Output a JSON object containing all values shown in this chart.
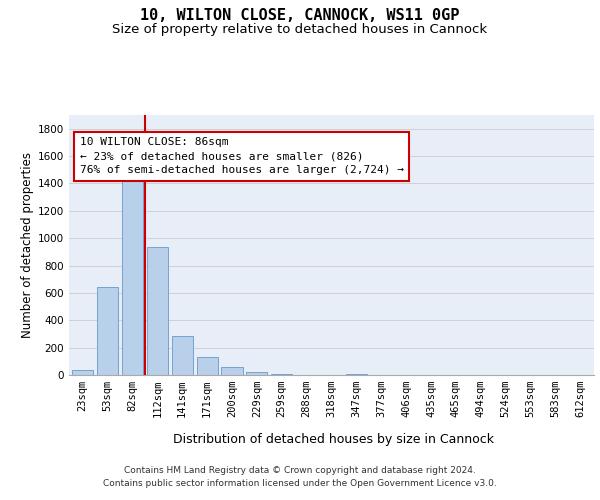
{
  "title1": "10, WILTON CLOSE, CANNOCK, WS11 0GP",
  "title2": "Size of property relative to detached houses in Cannock",
  "xlabel": "Distribution of detached houses by size in Cannock",
  "ylabel": "Number of detached properties",
  "categories": [
    "23sqm",
    "53sqm",
    "82sqm",
    "112sqm",
    "141sqm",
    "171sqm",
    "200sqm",
    "229sqm",
    "259sqm",
    "288sqm",
    "318sqm",
    "347sqm",
    "377sqm",
    "406sqm",
    "435sqm",
    "465sqm",
    "494sqm",
    "524sqm",
    "553sqm",
    "583sqm",
    "612sqm"
  ],
  "values": [
    38,
    645,
    1470,
    935,
    285,
    128,
    60,
    22,
    10,
    0,
    0,
    10,
    0,
    0,
    0,
    0,
    0,
    0,
    0,
    0,
    0
  ],
  "bar_color": "#b8d0ea",
  "bar_edge_color": "#6699cc",
  "grid_color": "#cccccc",
  "vline_index": 2,
  "vline_color": "#cc0000",
  "annotation_line1": "10 WILTON CLOSE: 86sqm",
  "annotation_line2": "← 23% of detached houses are smaller (826)",
  "annotation_line3": "76% of semi-detached houses are larger (2,724) →",
  "annotation_box_color": "#cc0000",
  "ylim": [
    0,
    1900
  ],
  "yticks": [
    0,
    200,
    400,
    600,
    800,
    1000,
    1200,
    1400,
    1600,
    1800
  ],
  "footer1": "Contains HM Land Registry data © Crown copyright and database right 2024.",
  "footer2": "Contains public sector information licensed under the Open Government Licence v3.0.",
  "bg_color": "#e8eef8",
  "title1_fontsize": 11,
  "title2_fontsize": 9.5,
  "annotation_fontsize": 8,
  "ylabel_fontsize": 8.5,
  "xlabel_fontsize": 9,
  "tick_fontsize": 7.5,
  "footer_fontsize": 6.5
}
